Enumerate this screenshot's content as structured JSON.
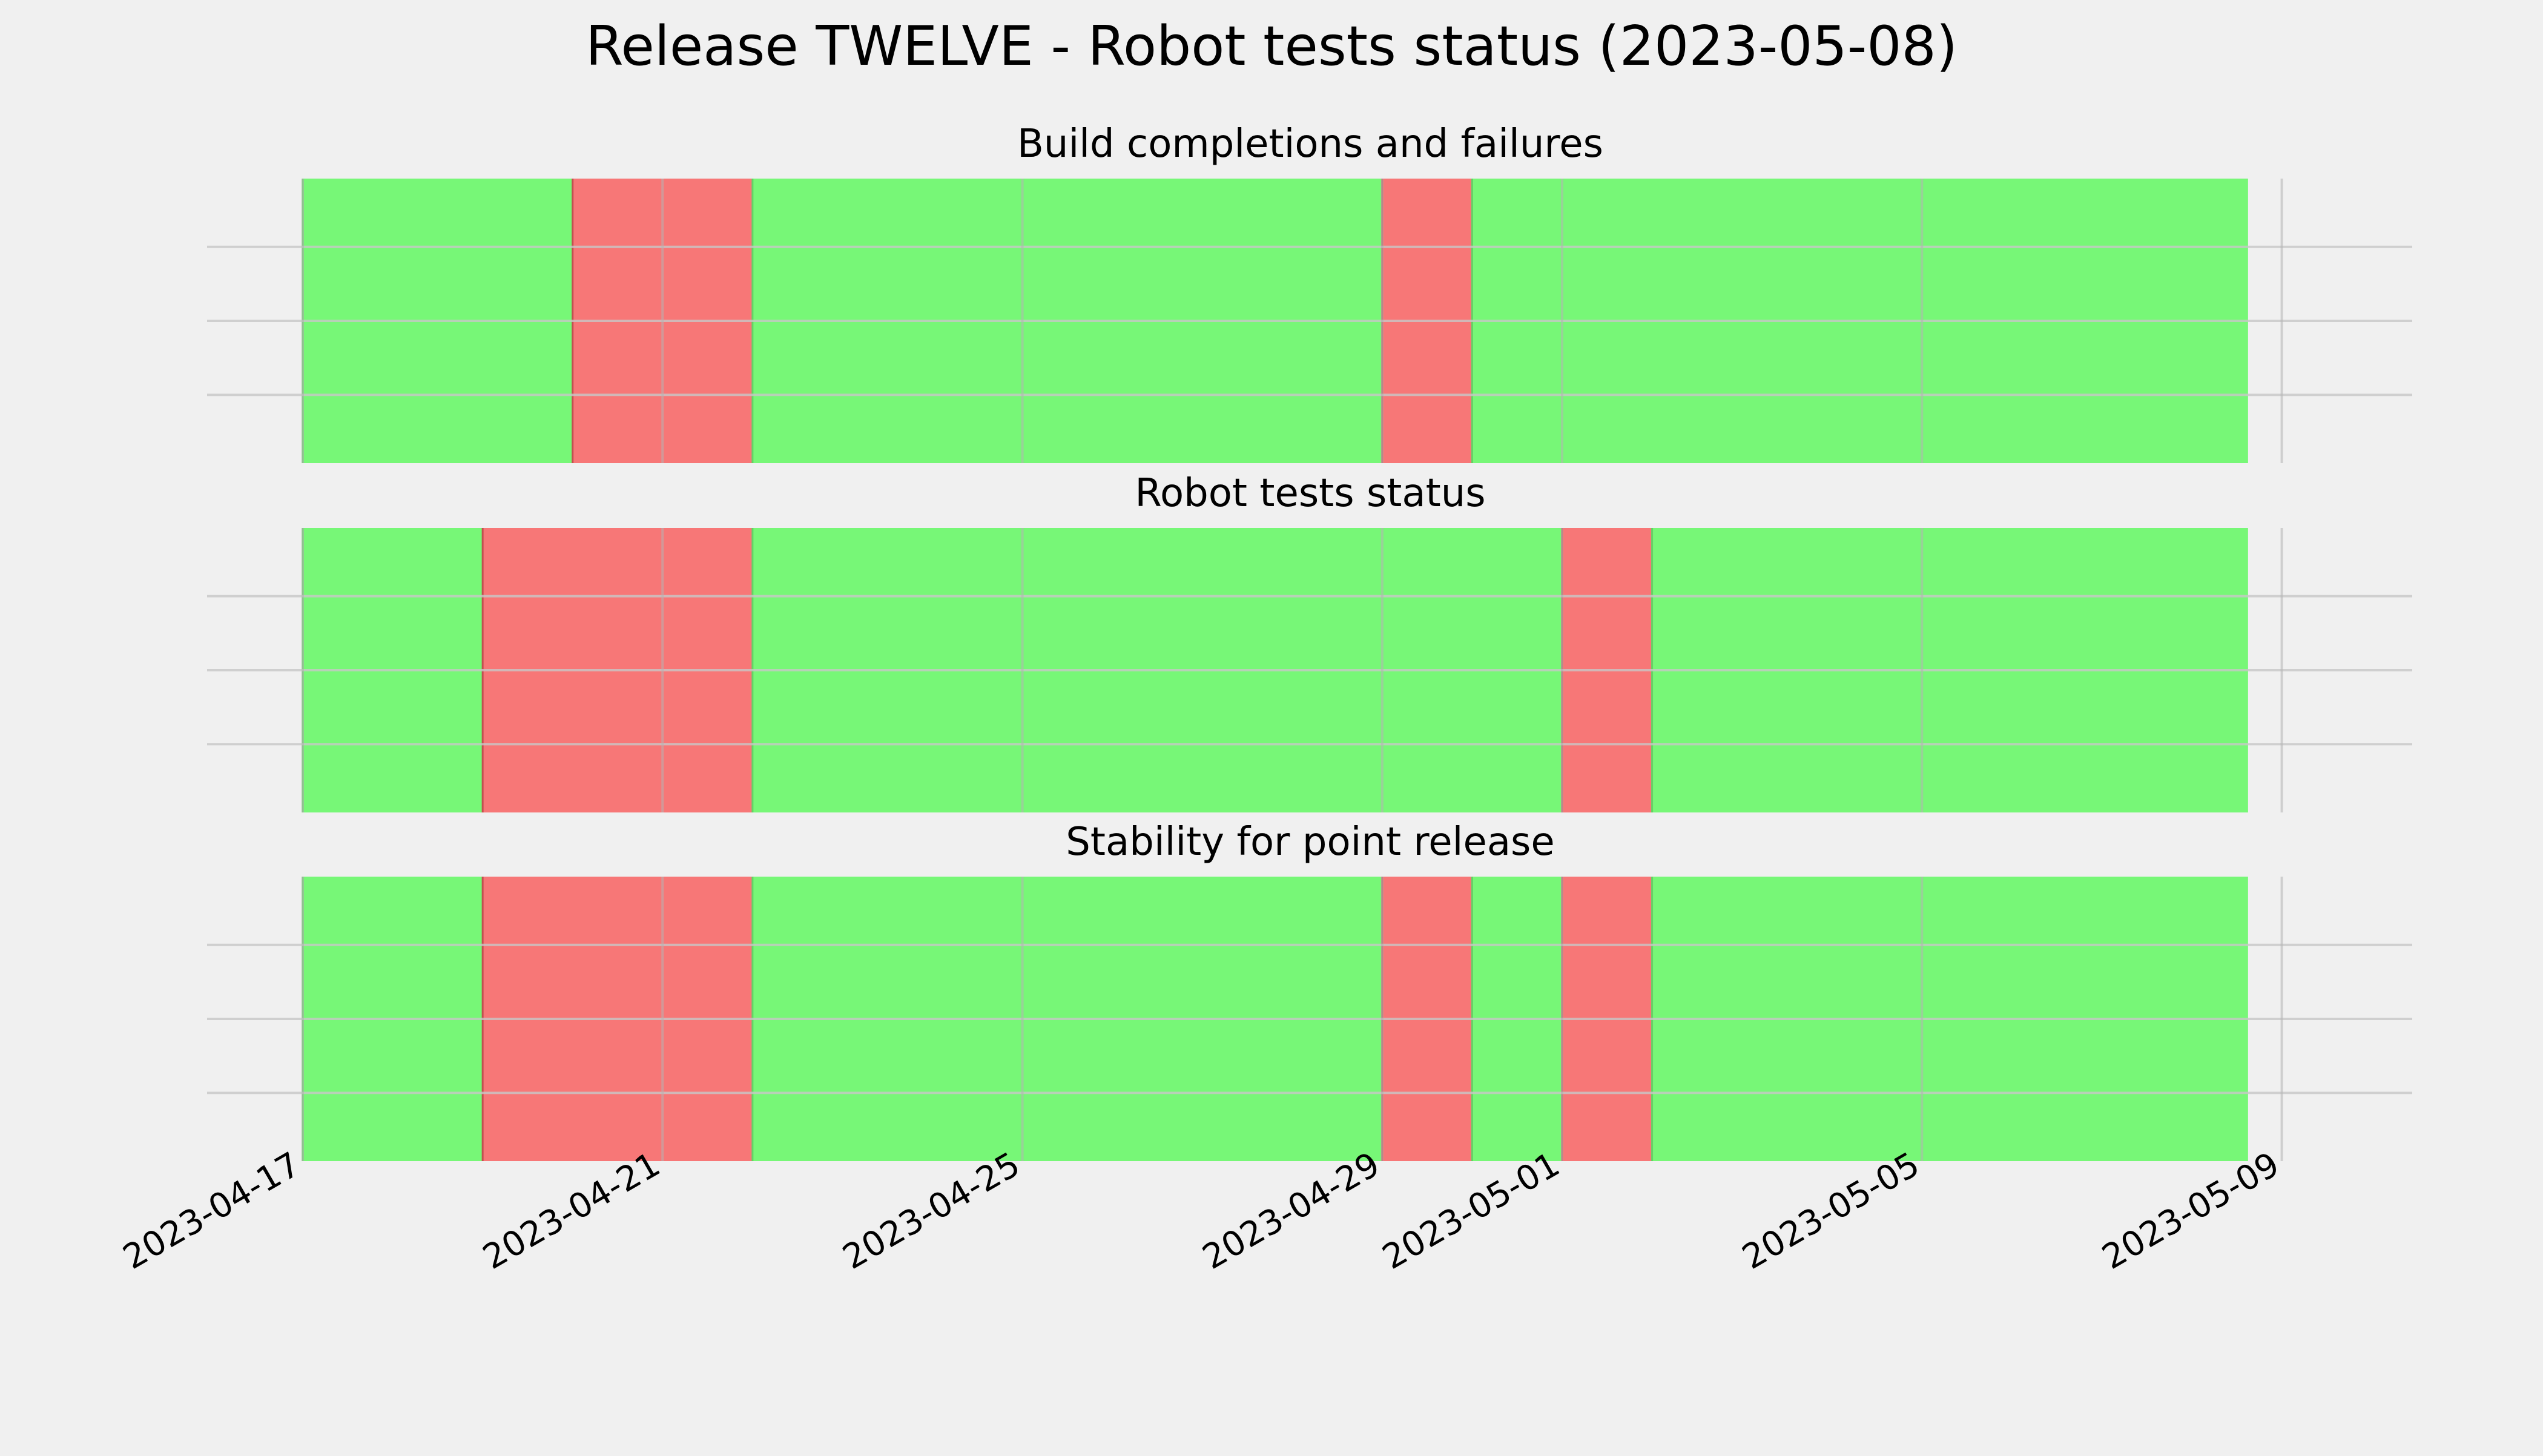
{
  "chart_data": {
    "type": "timeline",
    "title": "Release TWELVE - Robot tests status (2023-05-08)",
    "x_range": [
      "2023-04-17",
      "2023-05-09T18:00"
    ],
    "x_ticks": [
      "2023-04-17",
      "2023-04-21",
      "2023-04-25",
      "2023-04-29",
      "2023-05-01",
      "2023-05-05",
      "2023-05-09"
    ],
    "grid": true,
    "colors": {
      "pass": "#77f777",
      "fail": "#f77777"
    },
    "panels": [
      {
        "title": "Build completions and failures",
        "segments": [
          {
            "start": "2023-04-17",
            "end": "2023-04-20",
            "status": "pass"
          },
          {
            "start": "2023-04-20",
            "end": "2023-04-22",
            "status": "fail"
          },
          {
            "start": "2023-04-22",
            "end": "2023-04-29",
            "status": "pass"
          },
          {
            "start": "2023-04-29",
            "end": "2023-04-30",
            "status": "fail"
          },
          {
            "start": "2023-04-30",
            "end": "2023-05-08T15:00",
            "status": "pass"
          }
        ]
      },
      {
        "title": "Robot tests status",
        "segments": [
          {
            "start": "2023-04-17",
            "end": "2023-04-19",
            "status": "pass"
          },
          {
            "start": "2023-04-19",
            "end": "2023-04-22",
            "status": "fail"
          },
          {
            "start": "2023-04-22",
            "end": "2023-05-01",
            "status": "pass"
          },
          {
            "start": "2023-05-01",
            "end": "2023-05-02",
            "status": "fail"
          },
          {
            "start": "2023-05-02",
            "end": "2023-05-08T15:00",
            "status": "pass"
          }
        ]
      },
      {
        "title": "Stability for point release",
        "segments": [
          {
            "start": "2023-04-17",
            "end": "2023-04-19",
            "status": "pass"
          },
          {
            "start": "2023-04-19",
            "end": "2023-04-22",
            "status": "fail"
          },
          {
            "start": "2023-04-22",
            "end": "2023-04-29",
            "status": "pass"
          },
          {
            "start": "2023-04-29",
            "end": "2023-04-30",
            "status": "fail"
          },
          {
            "start": "2023-04-30",
            "end": "2023-05-01",
            "status": "pass"
          },
          {
            "start": "2023-05-01",
            "end": "2023-05-02",
            "status": "fail"
          },
          {
            "start": "2023-05-02",
            "end": "2023-05-08T15:00",
            "status": "pass"
          }
        ]
      }
    ]
  }
}
